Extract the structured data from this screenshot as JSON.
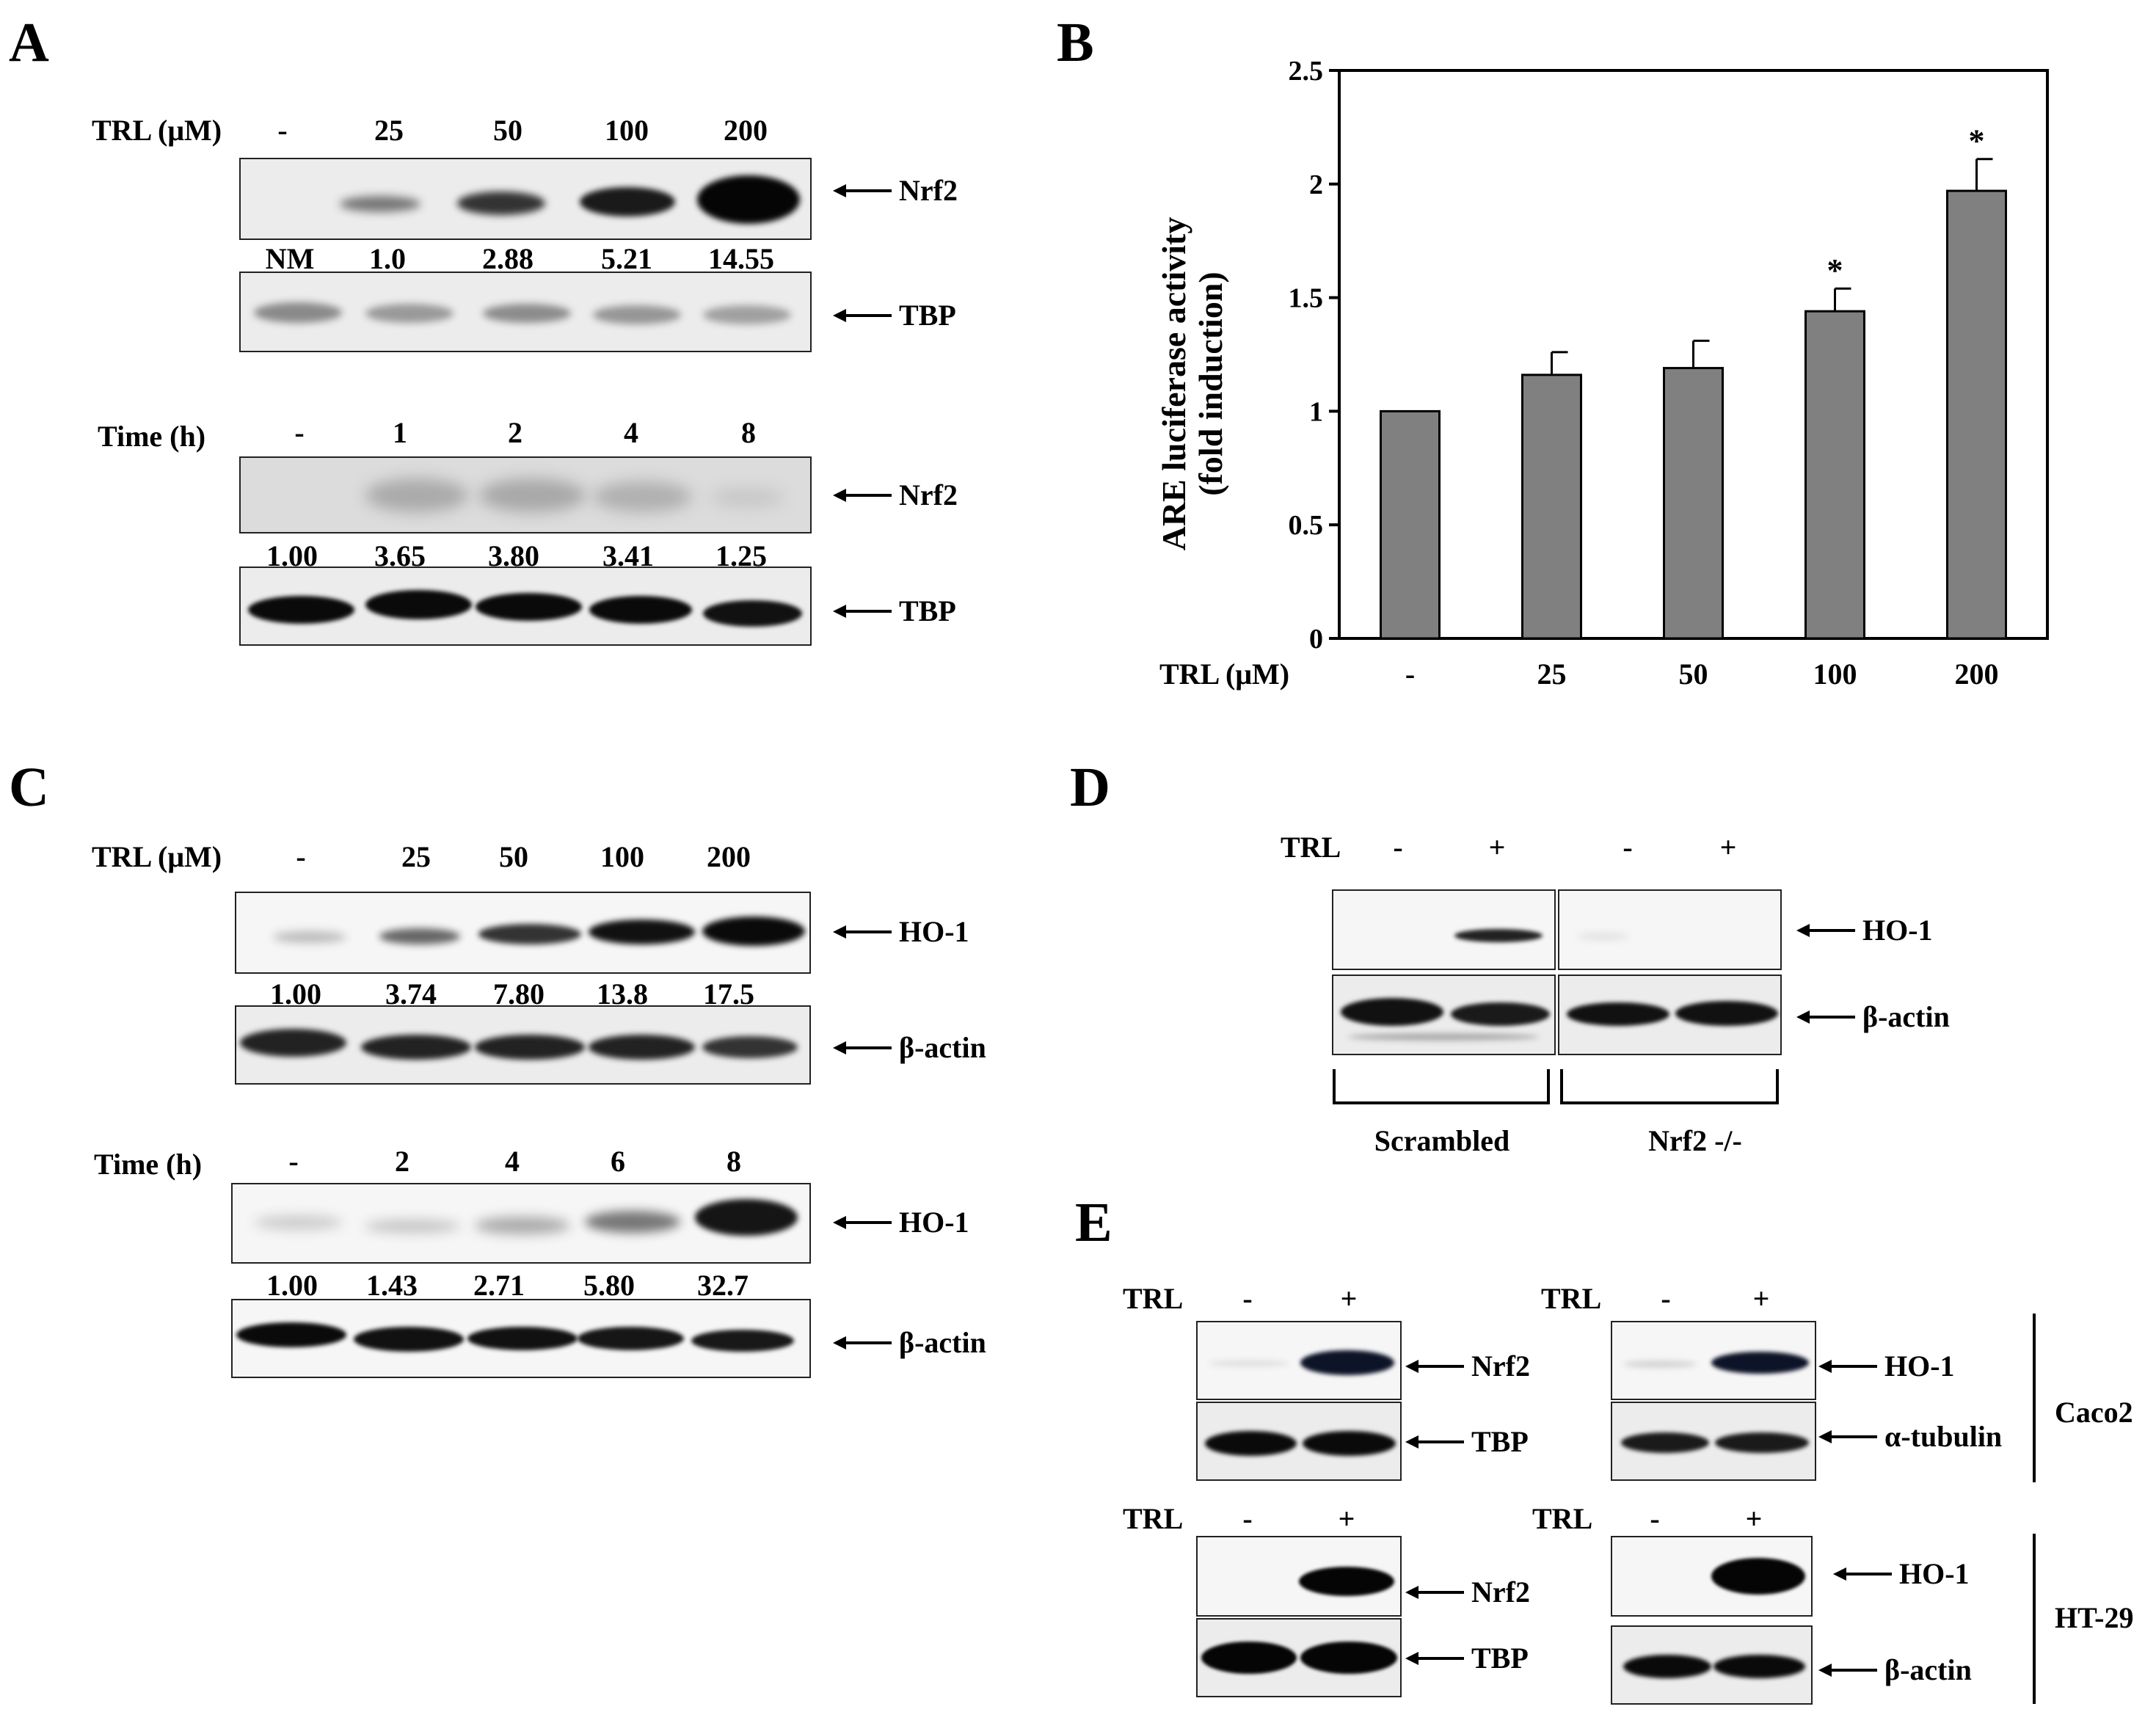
{
  "panels": {
    "A": {
      "label": "A",
      "blot1": {
        "header_label": "TRL (μM)",
        "lanes": [
          "-",
          "25",
          "50",
          "100",
          "200"
        ],
        "quant": [
          "NM",
          "1.0",
          "2.88",
          "5.21",
          "14.55"
        ],
        "top_marker": "Nrf2",
        "bottom_marker": "TBP"
      },
      "blot2": {
        "header_label": "Time (h)",
        "lanes": [
          "-",
          "1",
          "2",
          "4",
          "8"
        ],
        "quant": [
          "1.00",
          "3.65",
          "3.80",
          "3.41",
          "1.25"
        ],
        "top_marker": "Nrf2",
        "bottom_marker": "TBP"
      }
    },
    "B": {
      "label": "B"
    },
    "C": {
      "label": "C",
      "blot1": {
        "header_label": "TRL (μM)",
        "lanes": [
          "-",
          "25",
          "50",
          "100",
          "200"
        ],
        "quant": [
          "1.00",
          "3.74",
          "7.80",
          "13.8",
          "17.5"
        ],
        "top_marker": "HO-1",
        "bottom_marker": "β-actin"
      },
      "blot2": {
        "header_label": "Time (h)",
        "lanes": [
          "-",
          "2",
          "4",
          "6",
          "8"
        ],
        "quant": [
          "1.00",
          "1.43",
          "2.71",
          "5.80",
          "32.7"
        ],
        "top_marker": "HO-1",
        "bottom_marker": "β-actin"
      }
    },
    "D": {
      "label": "D",
      "header_label": "TRL",
      "lanes": [
        "-",
        "+",
        "-",
        "+"
      ],
      "top_marker": "HO-1",
      "bottom_marker": "β-actin",
      "groups": [
        "Scrambled",
        "Nrf2 -/-"
      ]
    },
    "E": {
      "label": "E",
      "header_label": "TRL",
      "lanes": [
        "-",
        "+"
      ],
      "caco2": {
        "cell_line": "Caco2",
        "left": {
          "top_marker": "Nrf2",
          "bottom_marker": "TBP"
        },
        "right": {
          "top_marker": "HO-1",
          "bottom_marker": "α-tubulin"
        }
      },
      "ht29": {
        "cell_line": "HT-29",
        "left": {
          "top_marker": "Nrf2",
          "bottom_marker": "TBP"
        },
        "right": {
          "top_marker": "HO-1",
          "bottom_marker": "β-actin"
        }
      }
    }
  },
  "chart_data": {
    "type": "bar",
    "categories": [
      "-",
      "25",
      "50",
      "100",
      "200"
    ],
    "values": [
      1.0,
      1.16,
      1.19,
      1.44,
      1.97
    ],
    "errors": [
      0,
      0.1,
      0.12,
      0.1,
      0.14
    ],
    "significance": [
      "",
      "",
      "",
      "*",
      "*"
    ],
    "xlabel": "TRL (μM)",
    "ylabel": "ARE luciferase activity (fold induction)",
    "ylabel_line1": "ARE luciferase activity",
    "ylabel_line2": "(fold induction)",
    "ylim": [
      0,
      2.5
    ],
    "yticks": [
      "0",
      "0.5",
      "1",
      "1.5",
      "2",
      "2.5"
    ],
    "bar_color": "#808080",
    "grid": false
  }
}
